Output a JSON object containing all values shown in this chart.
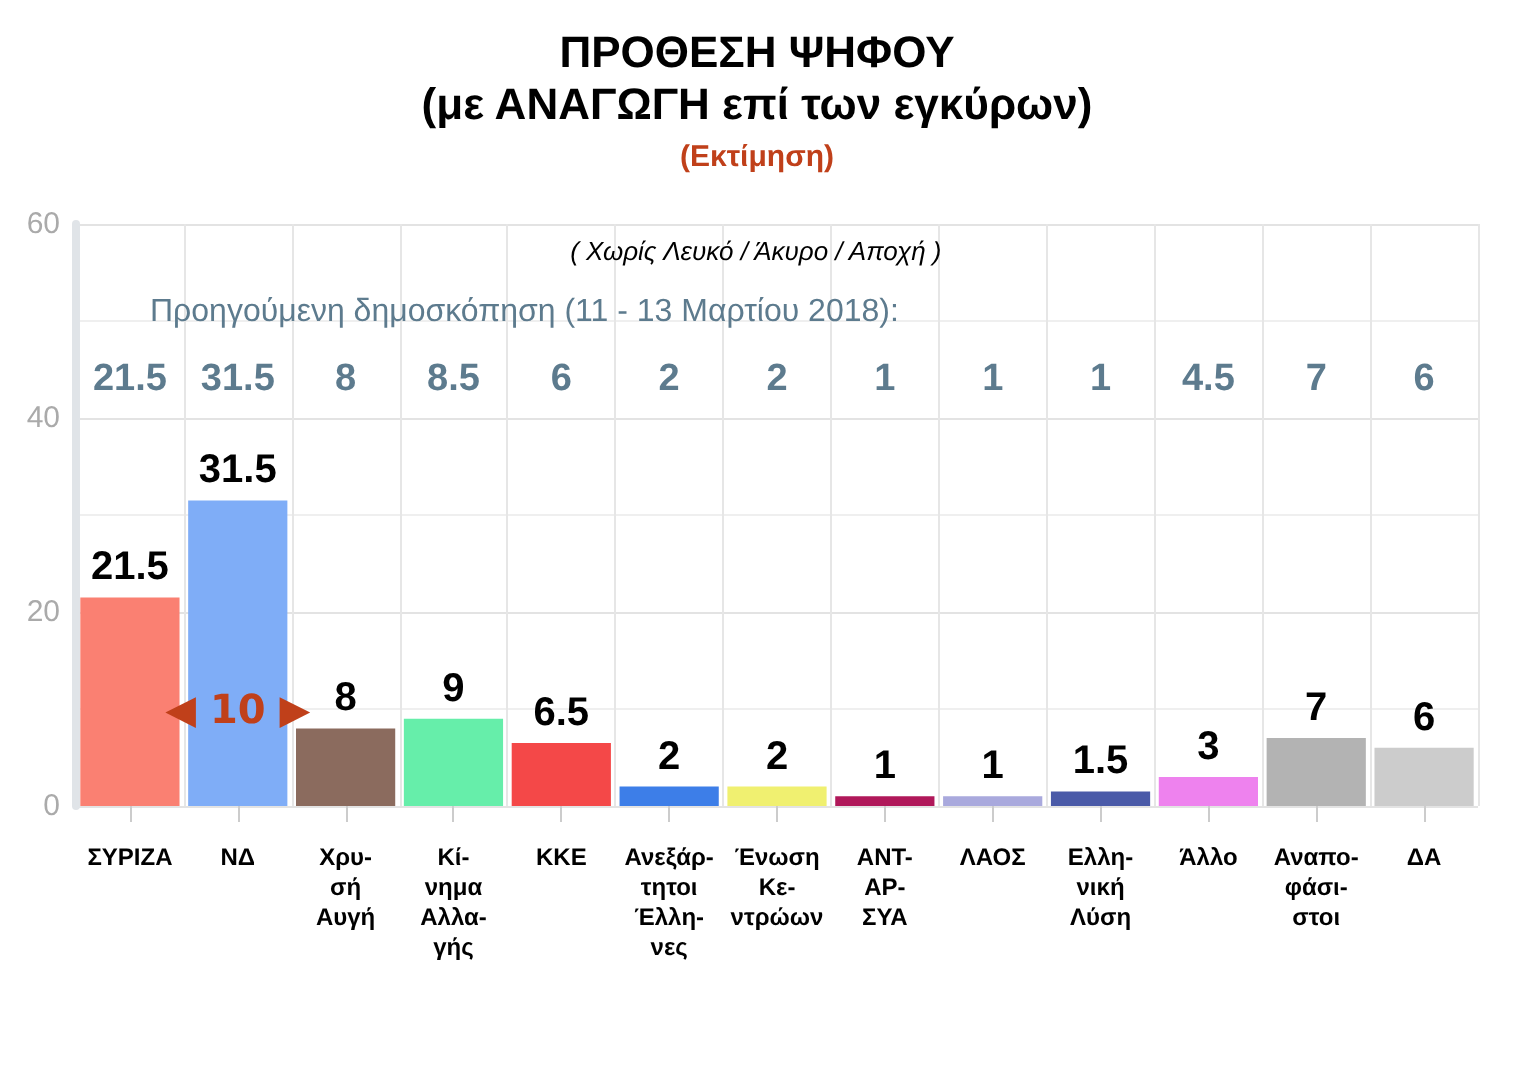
{
  "chart_data": {
    "type": "bar",
    "title": "ΠΡΟΘΕΣΗ ΨΗΦΟΥ\n(με ΑΝΑΓΩΓΗ επί των εγκύρων)",
    "subtitle": "(Εκτίμηση)",
    "categories": [
      "ΣΥΡΙΖΑ",
      "ΝΔ",
      "Χρυ-\nσή\nΑυγή",
      "Κί-\nνημα\nΑλλα-\nγής",
      "ΚΚΕ",
      "Ανεξάρ-\nτητοι\nΈλλη-\nνες",
      "Ένωση\nΚε-\nντρώων",
      "ΑΝΤ-\nΑΡ-\nΣΥΑ",
      "ΛΑΟΣ",
      "Ελλη-\nνική\nΛύση",
      "Άλλο",
      "Αναπο-\nφάσι-\nστοι",
      "ΔΑ"
    ],
    "values": [
      21.5,
      31.5,
      8,
      9,
      6.5,
      2,
      2,
      1,
      1,
      1.5,
      3,
      7,
      6
    ],
    "colors": [
      "#fa8072",
      "#7fadf7",
      "#8b6b5e",
      "#66eeaa",
      "#f44848",
      "#3d7ee8",
      "#f0f070",
      "#b0185a",
      "#a9a9dd",
      "#4a5aa8",
      "#ee82ee",
      "#b3b3b3",
      "#cccccc"
    ],
    "ylim": [
      0,
      60
    ],
    "yticks": [
      0,
      20,
      40,
      60
    ],
    "grid": true,
    "data_labels": true,
    "annotations": [
      "( Χωρίς Λευκό / Άκυρο / Αποχή )",
      "Προηγούμενη δημοσκόπηση (11 - 13 Μαρτίου 2018):",
      "◀ 10 ▶",
      "21.5",
      "31.5",
      "8",
      "8.5",
      "6",
      "2",
      "2",
      "1",
      "1",
      "1",
      "4.5",
      "7",
      "6"
    ]
  }
}
